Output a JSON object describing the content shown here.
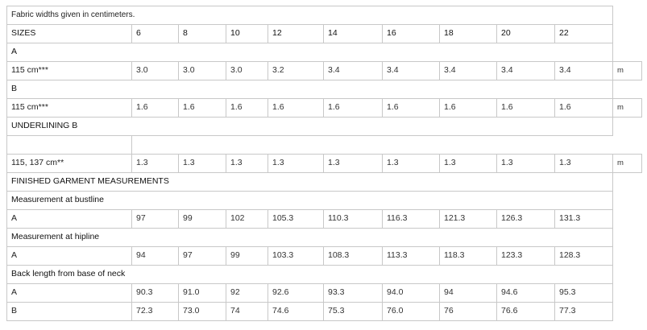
{
  "table": {
    "note": "Fabric widths given in centimeters.",
    "sizes_label": "SIZES",
    "sizes": [
      "6",
      "8",
      "10",
      "12",
      "14",
      "16",
      "18",
      "20",
      "22"
    ],
    "rows": [
      {
        "kind": "section",
        "label": "A"
      },
      {
        "kind": "data",
        "label": "115 cm***",
        "values": [
          "3.0",
          "3.0",
          "3.0",
          "3.2",
          "3.4",
          "3.4",
          "3.4",
          "3.4",
          "3.4"
        ],
        "unit": "m"
      },
      {
        "kind": "section",
        "label": "B"
      },
      {
        "kind": "data",
        "label": "115 cm***",
        "values": [
          "1.6",
          "1.6",
          "1.6",
          "1.6",
          "1.6",
          "1.6",
          "1.6",
          "1.6",
          "1.6"
        ],
        "unit": "m"
      },
      {
        "kind": "section",
        "label": "UNDERLINING B"
      },
      {
        "kind": "blank"
      },
      {
        "kind": "data",
        "label": "115, 137 cm**",
        "values": [
          "1.3",
          "1.3",
          "1.3",
          "1.3",
          "1.3",
          "1.3",
          "1.3",
          "1.3",
          "1.3"
        ],
        "unit": "m"
      },
      {
        "kind": "section",
        "label": "FINISHED GARMENT MEASUREMENTS"
      },
      {
        "kind": "section",
        "label": "Measurement at bustline"
      },
      {
        "kind": "data",
        "label": "A",
        "values": [
          "97",
          "99",
          "102",
          "105.3",
          "110.3",
          "116.3",
          "121.3",
          "126.3",
          "131.3"
        ]
      },
      {
        "kind": "section",
        "label": "Measurement at hipline"
      },
      {
        "kind": "data",
        "label": "A",
        "values": [
          "94",
          "97",
          "99",
          "103.3",
          "108.3",
          "113.3",
          "118.3",
          "123.3",
          "128.3"
        ]
      },
      {
        "kind": "section",
        "label": "Back length from base of neck"
      },
      {
        "kind": "data",
        "label": "A",
        "values": [
          "90.3",
          "91.0",
          "92",
          "92.6",
          "93.3",
          "94.0",
          "94",
          "94.6",
          "95.3"
        ]
      },
      {
        "kind": "data",
        "label": "B",
        "values": [
          "72.3",
          "73.0",
          "74",
          "74.6",
          "75.3",
          "76.0",
          "76",
          "76.6",
          "77.3"
        ]
      }
    ]
  }
}
